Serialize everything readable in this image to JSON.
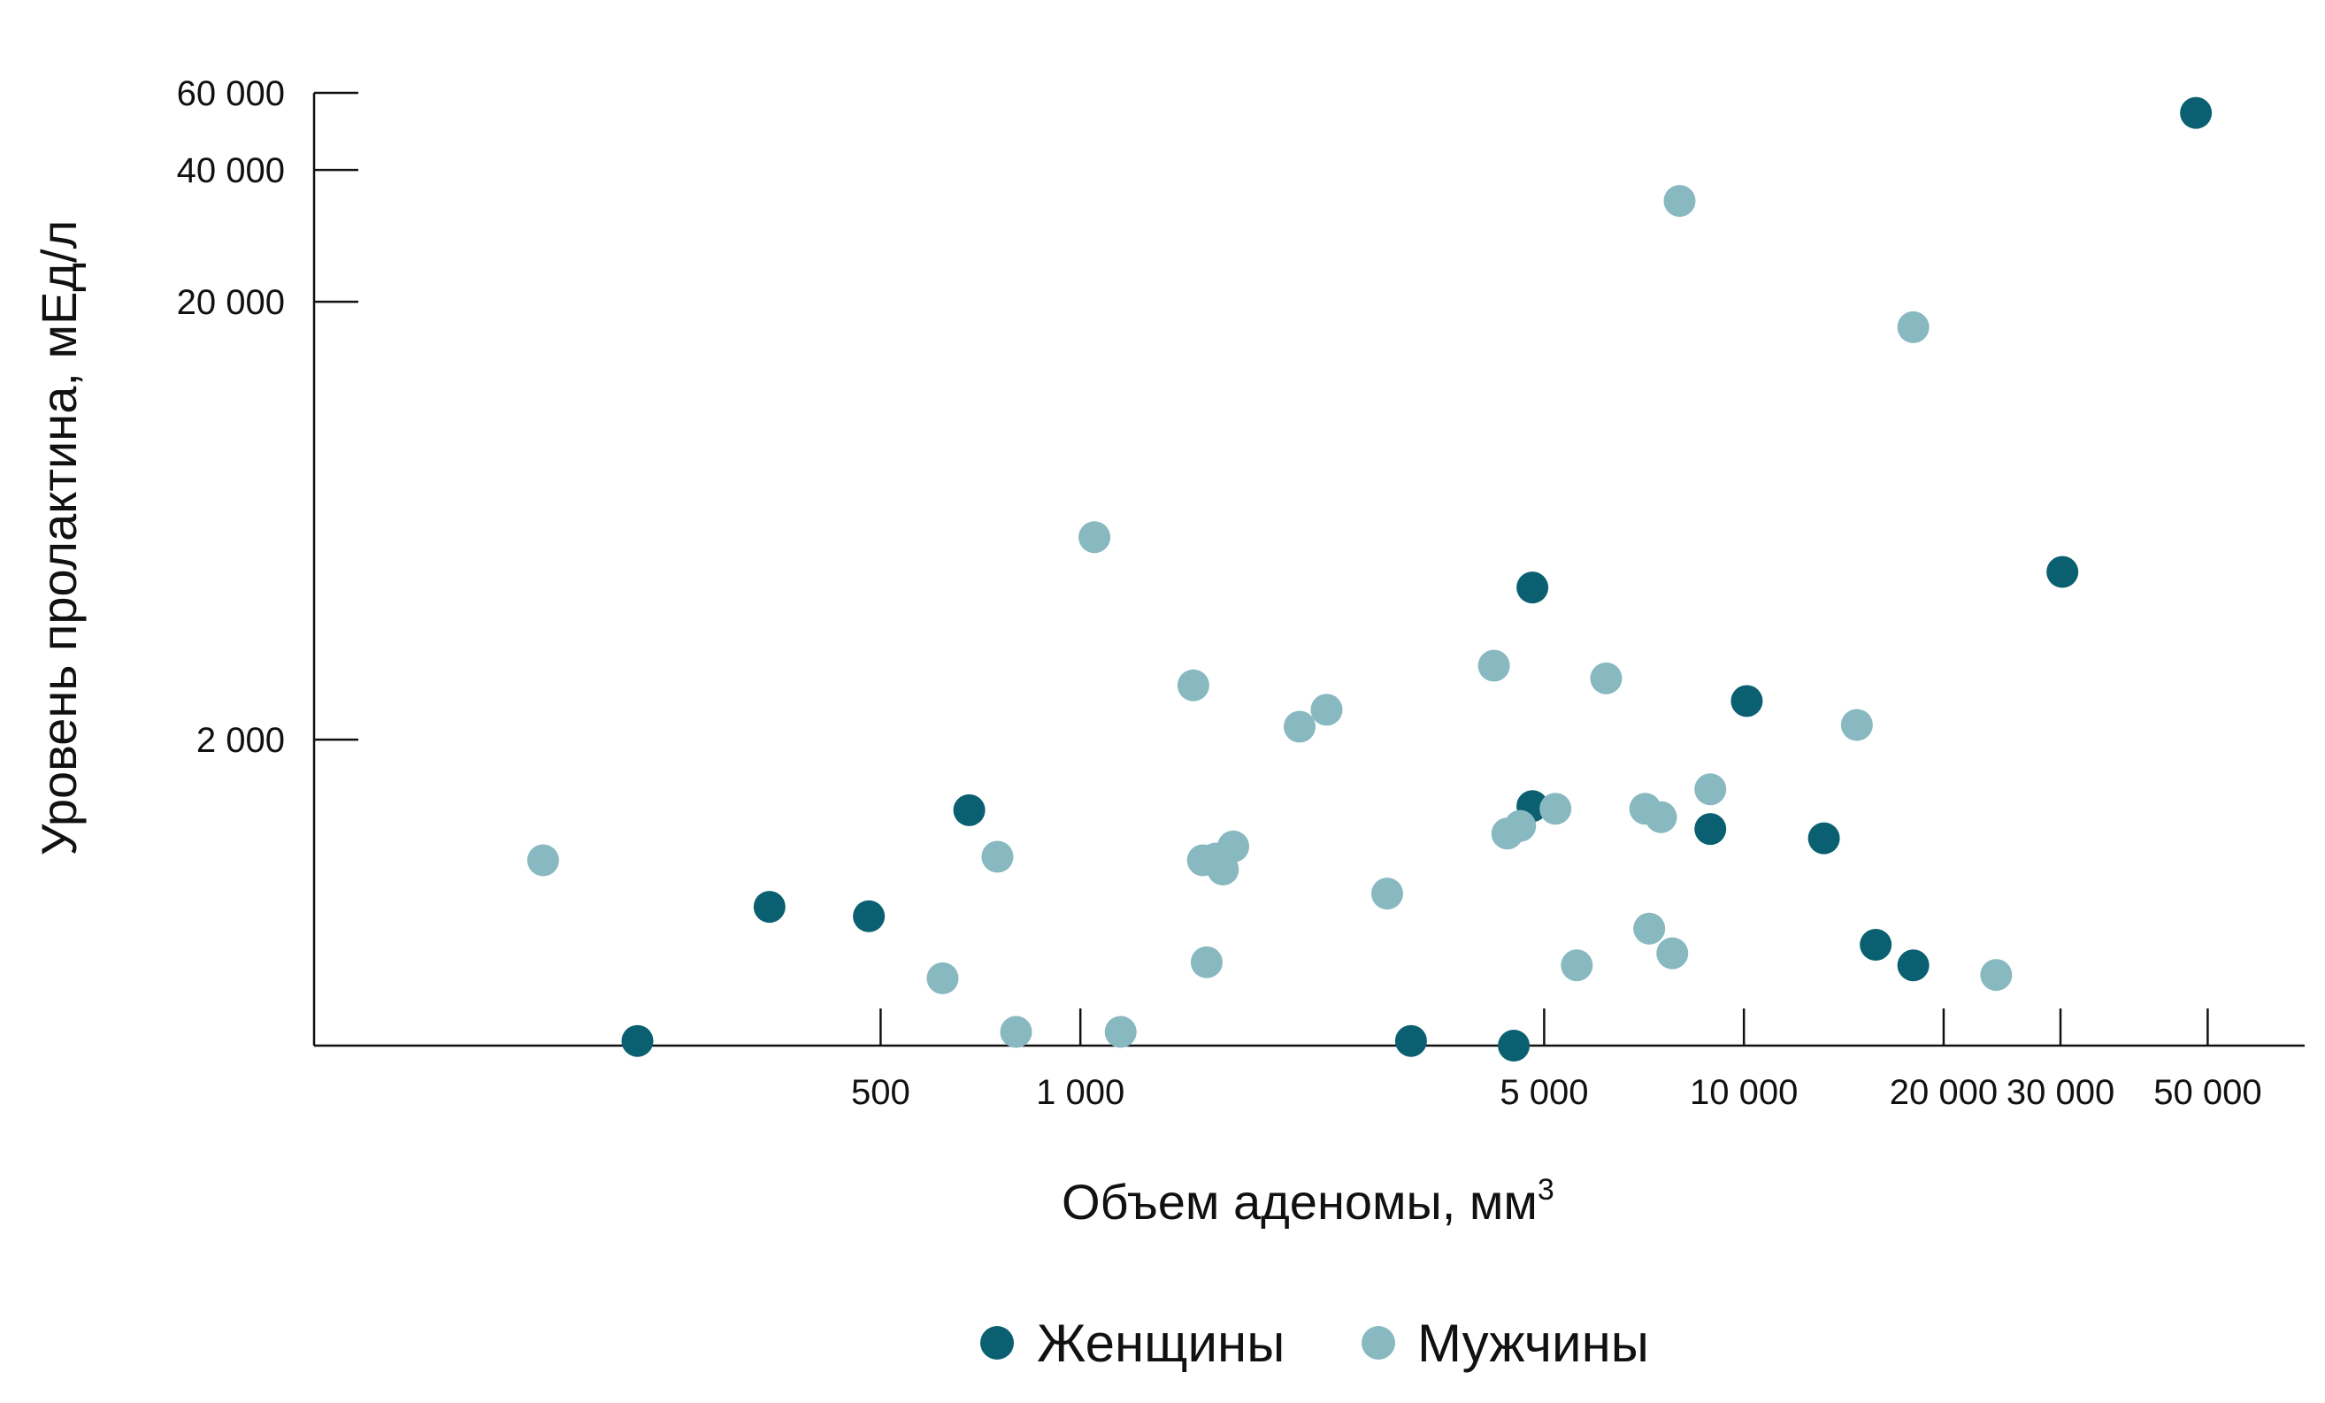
{
  "colors": {
    "women": "#0a6070",
    "men": "#88b8c0"
  },
  "chart_data": {
    "type": "scatter",
    "xlabel": "Объем аденомы, мм",
    "xlabel_sup": "3",
    "ylabel": "Уровень пролактина, мЕд/л",
    "xscale": "log",
    "yscale": "log",
    "xlim": [
      70,
      70000
    ],
    "ylim": [
      400,
      60000
    ],
    "legend_position": "bottom",
    "grid": false,
    "x_ticks": [
      {
        "value": 500,
        "label": "500"
      },
      {
        "value": 1000,
        "label": "1 000"
      },
      {
        "value": 5000,
        "label": "5 000"
      },
      {
        "value": 10000,
        "label": "10 000"
      },
      {
        "value": 20000,
        "label": "20 000"
      },
      {
        "value": 30000,
        "label": "30 000"
      },
      {
        "value": 50000,
        "label": "50 000"
      }
    ],
    "y_ticks": [
      {
        "value": 2000,
        "label": "2 000"
      },
      {
        "value": 20000,
        "label": "20 000"
      },
      {
        "value": 40000,
        "label": "40 000"
      },
      {
        "value": 60000,
        "label": "60 000"
      }
    ],
    "series": [
      {
        "name": "Женщины",
        "color": "#0a6070",
        "points": [
          [
            48000,
            54000
          ],
          [
            30200,
            4830
          ],
          [
            4800,
            4450
          ],
          [
            10100,
            2450
          ],
          [
            4800,
            1410
          ],
          [
            8900,
            1250
          ],
          [
            13200,
            1190
          ],
          [
            680,
            1380
          ],
          [
            340,
            830
          ],
          [
            480,
            790
          ],
          [
            215,
            410
          ],
          [
            3150,
            410
          ],
          [
            4500,
            400
          ],
          [
            15800,
            680
          ],
          [
            18000,
            610
          ]
        ]
      },
      {
        "name": "Мужчины",
        "color": "#88b8c0",
        "points": [
          [
            8000,
            34000
          ],
          [
            18000,
            17500
          ],
          [
            1050,
            5800
          ],
          [
            1480,
            2660
          ],
          [
            2140,
            2140
          ],
          [
            2350,
            2340
          ],
          [
            4200,
            2950
          ],
          [
            6200,
            2760
          ],
          [
            14800,
            2160
          ],
          [
            8900,
            1540
          ],
          [
            5200,
            1390
          ],
          [
            7100,
            1390
          ],
          [
            7500,
            1330
          ],
          [
            4600,
            1270
          ],
          [
            4400,
            1220
          ],
          [
            1530,
            1060
          ],
          [
            1640,
            1010
          ],
          [
            1700,
            1140
          ],
          [
            1600,
            1070
          ],
          [
            750,
            1080
          ],
          [
            2900,
            890
          ],
          [
            7200,
            740
          ],
          [
            7800,
            650
          ],
          [
            5600,
            610
          ],
          [
            24000,
            580
          ],
          [
            1550,
            620
          ],
          [
            620,
            570
          ],
          [
            800,
            430
          ],
          [
            1150,
            430
          ],
          [
            155,
            1060
          ]
        ]
      }
    ]
  }
}
